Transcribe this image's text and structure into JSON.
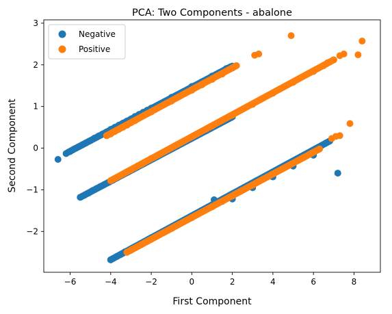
{
  "chart_data": {
    "type": "scatter",
    "title": "PCA: Two Components - abalone",
    "xlabel": "First Component",
    "ylabel": "Second Component",
    "xlim": [
      -7.3,
      9.3
    ],
    "ylim": [
      -2.98,
      3.08
    ],
    "xticks": [
      -6,
      -4,
      -2,
      0,
      2,
      4,
      6,
      8
    ],
    "yticks": [
      -2,
      -1,
      0,
      1,
      2,
      3
    ],
    "tick_labels": {
      "x": [
        "−6",
        "−4",
        "−2",
        "0",
        "2",
        "4",
        "6",
        "8"
      ],
      "y": [
        "−2",
        "−1",
        "0",
        "1",
        "2",
        "3"
      ]
    },
    "grid": false,
    "legend": "top-left",
    "series": [
      {
        "name": "Negative",
        "color": "#1f77b4",
        "segments": [
          {
            "from": [
              -6.1,
              -0.1
            ],
            "to": [
              1.9,
              1.95
            ]
          },
          {
            "from": [
              -5.5,
              -1.18
            ],
            "to": [
              2.0,
              0.75
            ]
          },
          {
            "from": [
              -4.0,
              -2.68
            ],
            "to": [
              6.8,
              0.17
            ]
          }
        ],
        "points": [
          [
            -6.6,
            -0.27
          ],
          [
            -6.2,
            -0.13
          ],
          [
            -6.0,
            -0.08
          ],
          [
            -5.8,
            -0.02
          ],
          [
            -5.6,
            0.03
          ],
          [
            -5.4,
            0.08
          ],
          [
            -5.2,
            0.13
          ],
          [
            -5.0,
            0.18
          ],
          [
            -4.8,
            0.24
          ],
          [
            -4.6,
            0.29
          ],
          [
            -4.4,
            0.34
          ],
          [
            -4.2,
            0.39
          ],
          [
            -4.0,
            0.45
          ],
          [
            -3.8,
            0.5
          ],
          [
            -3.6,
            0.55
          ],
          [
            -3.4,
            0.6
          ],
          [
            -3.2,
            0.65
          ],
          [
            -3.0,
            0.7
          ],
          [
            -2.8,
            0.76
          ],
          [
            -2.6,
            0.81
          ],
          [
            -2.4,
            0.86
          ],
          [
            -2.2,
            0.91
          ],
          [
            -2.0,
            0.96
          ],
          [
            -1.0,
            1.22
          ],
          [
            0.0,
            1.48
          ],
          [
            1.0,
            1.73
          ],
          [
            1.7,
            1.91
          ],
          [
            2.0,
            1.97
          ],
          [
            -5.5,
            -1.18
          ],
          [
            -5.3,
            -1.13
          ],
          [
            -5.1,
            -1.08
          ],
          [
            -4.9,
            -1.02
          ],
          [
            -4.7,
            -0.97
          ],
          [
            -4.5,
            -0.92
          ],
          [
            -4.3,
            -0.87
          ],
          [
            -4.1,
            -0.82
          ],
          [
            -3.9,
            -0.77
          ],
          [
            -3.0,
            -0.53
          ],
          [
            -2.0,
            -0.27
          ],
          [
            -1.0,
            -0.02
          ],
          [
            0.0,
            0.24
          ],
          [
            1.0,
            0.5
          ],
          [
            2.0,
            0.76
          ],
          [
            -4.0,
            -2.68
          ],
          [
            -3.7,
            -2.6
          ],
          [
            -3.5,
            -2.55
          ],
          [
            -3.3,
            -2.49
          ],
          [
            -3.0,
            -2.42
          ],
          [
            -2.0,
            -2.15
          ],
          [
            -1.0,
            -1.89
          ],
          [
            0.0,
            -1.63
          ],
          [
            1.1,
            -1.24
          ],
          [
            1.5,
            -1.28
          ],
          [
            2.0,
            -1.22
          ],
          [
            3.0,
            -0.95
          ],
          [
            4.0,
            -0.69
          ],
          [
            5.0,
            -0.43
          ],
          [
            6.0,
            -0.17
          ],
          [
            6.6,
            0.12
          ],
          [
            6.8,
            0.17
          ],
          [
            7.2,
            -0.6
          ]
        ]
      },
      {
        "name": "Positive",
        "color": "#ff7f0e",
        "segments": [
          {
            "from": [
              -4.2,
              0.3
            ],
            "to": [
              2.2,
              1.98
            ]
          },
          {
            "from": [
              -4.0,
              -0.78
            ],
            "to": [
              7.0,
              2.12
            ]
          },
          {
            "from": [
              -3.2,
              -2.5
            ],
            "to": [
              6.3,
              -0.02
            ]
          }
        ],
        "points": [
          [
            -4.2,
            0.3
          ],
          [
            -4.0,
            0.34
          ],
          [
            -3.8,
            0.4
          ],
          [
            -3.6,
            0.45
          ],
          [
            -3.4,
            0.5
          ],
          [
            -3.2,
            0.55
          ],
          [
            -3.0,
            0.61
          ],
          [
            -2.8,
            0.66
          ],
          [
            -2.0,
            0.87
          ],
          [
            -1.0,
            1.13
          ],
          [
            0.0,
            1.39
          ],
          [
            0.5,
            1.52
          ],
          [
            1.0,
            1.65
          ],
          [
            1.5,
            1.78
          ],
          [
            2.0,
            1.92
          ],
          [
            2.2,
            1.98
          ],
          [
            3.1,
            2.23
          ],
          [
            3.3,
            2.26
          ],
          [
            -4.0,
            -0.78
          ],
          [
            -3.5,
            -0.65
          ],
          [
            -3.0,
            -0.52
          ],
          [
            -2.5,
            -0.39
          ],
          [
            -2.0,
            -0.25
          ],
          [
            -1.0,
            0.01
          ],
          [
            0.0,
            0.27
          ],
          [
            1.0,
            0.53
          ],
          [
            2.0,
            0.79
          ],
          [
            3.0,
            1.05
          ],
          [
            4.0,
            1.32
          ],
          [
            5.0,
            1.58
          ],
          [
            6.0,
            1.84
          ],
          [
            6.5,
            1.98
          ],
          [
            6.7,
            2.05
          ],
          [
            7.0,
            2.12
          ],
          [
            4.9,
            2.7
          ],
          [
            7.3,
            2.22
          ],
          [
            7.5,
            2.26
          ],
          [
            8.2,
            2.24
          ],
          [
            8.4,
            2.57
          ],
          [
            -3.2,
            -2.5
          ],
          [
            -3.0,
            -2.45
          ],
          [
            -2.5,
            -2.32
          ],
          [
            -2.0,
            -2.19
          ],
          [
            -1.0,
            -1.93
          ],
          [
            0.0,
            -1.67
          ],
          [
            1.0,
            -1.41
          ],
          [
            2.0,
            -1.15
          ],
          [
            3.0,
            -0.89
          ],
          [
            4.0,
            -0.62
          ],
          [
            4.5,
            -0.49
          ],
          [
            5.0,
            -0.36
          ],
          [
            5.5,
            -0.23
          ],
          [
            6.0,
            -0.1
          ],
          [
            6.3,
            -0.02
          ],
          [
            6.9,
            0.23
          ],
          [
            7.1,
            0.28
          ],
          [
            7.3,
            0.3
          ],
          [
            7.8,
            0.59
          ]
        ]
      }
    ]
  }
}
